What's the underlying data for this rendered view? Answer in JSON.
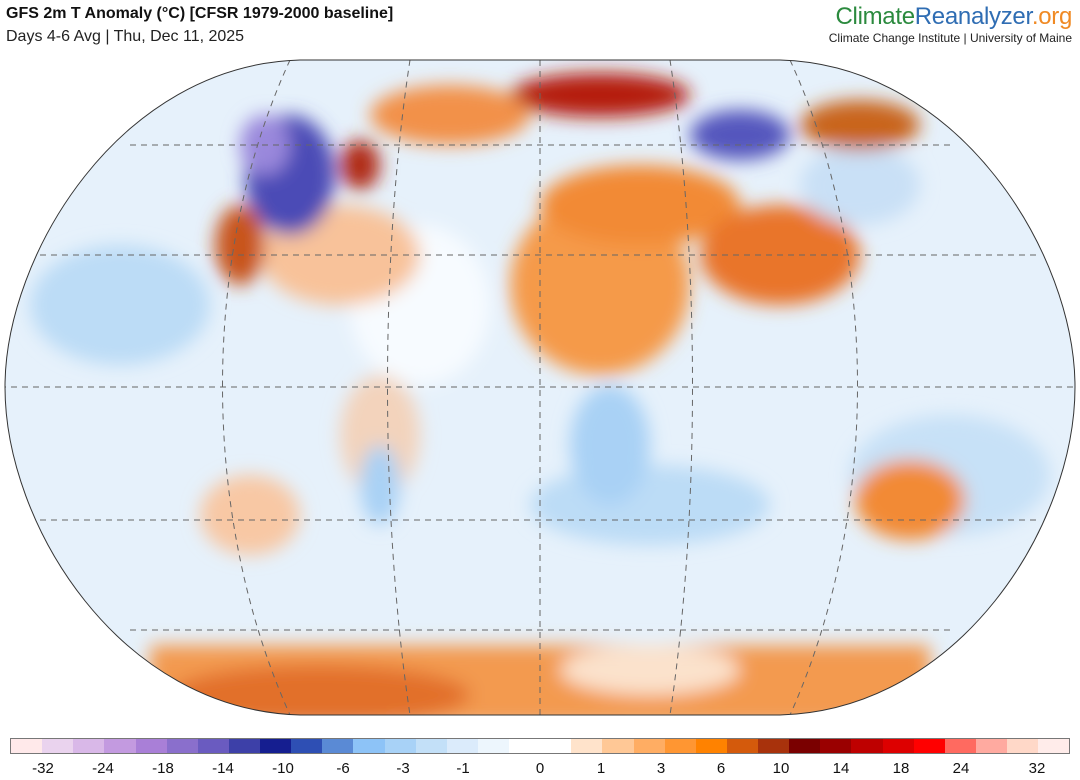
{
  "header": {
    "title": "GFS 2m T Anomaly (°C) [CFSR 1979-2000 baseline]",
    "subtitle": "Days 4-6 Avg | Thu, Dec 11, 2025"
  },
  "logo": {
    "part1": "Climate",
    "part2": "Reanalyzer",
    ".org": ".org",
    "part3": ".org",
    "tagline": "Climate Change Institute | University of Maine"
  },
  "colorbar": {
    "colors": [
      "#ffe9ea",
      "#ead3ee",
      "#d9b8e8",
      "#c39ae0",
      "#a97fd7",
      "#8a6fcc",
      "#6a5bc0",
      "#3d40a8",
      "#151e90",
      "#2e4fb4",
      "#5a8ad5",
      "#8dc3f7",
      "#a8d2f7",
      "#c3e0f8",
      "#dbebfb",
      "#edf6fd",
      "#ffffff",
      "#ffffff",
      "#ffe3cb",
      "#ffc896",
      "#ffad63",
      "#ff9632",
      "#ff8200",
      "#d45a0c",
      "#a8320c",
      "#7a0000",
      "#9a0000",
      "#be0000",
      "#dd0000",
      "#ff0000",
      "#ff6a60",
      "#ffaaa0",
      "#ffd8c8",
      "#ffecea"
    ],
    "labels": [
      "-32",
      "-24",
      "-18",
      "-14",
      "-10",
      "-6",
      "-3",
      "-1",
      "0",
      "1",
      "3",
      "6",
      "10",
      "14",
      "18",
      "24",
      "32"
    ]
  }
}
